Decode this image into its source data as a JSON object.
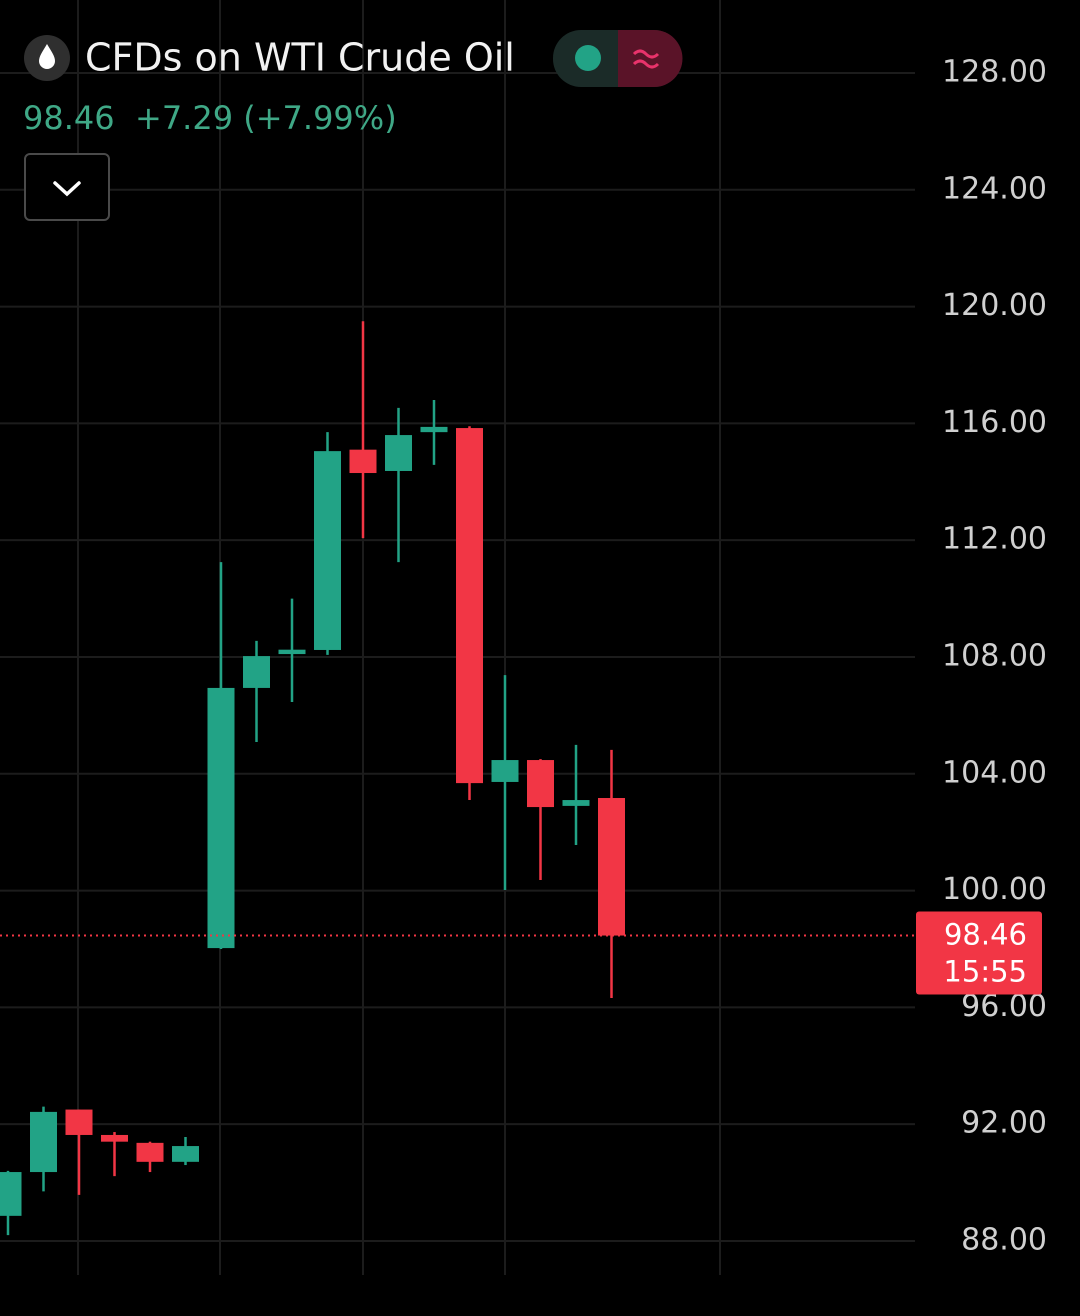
{
  "chart_data": {
    "type": "candlestick",
    "title": "CFDs on WTI Crude Oil",
    "last_price": 98.46,
    "change": "+7.29 (+7.99%)",
    "countdown": "15:55",
    "up_color": "#22a386",
    "down_color": "#f23645",
    "open": [
      88.86,
      90.36,
      92.5,
      91.63,
      91.36,
      90.71,
      98.03,
      106.94,
      108.1,
      108.24,
      115.1,
      114.37,
      115.7,
      115.84,
      103.72,
      104.47,
      102.9,
      103.17
    ],
    "high": [
      90.4,
      92.6,
      92.5,
      91.73,
      91.4,
      91.56,
      111.25,
      108.55,
      110.0,
      115.7,
      119.5,
      116.53,
      116.8,
      115.9,
      107.38,
      104.5,
      104.99,
      104.82
    ],
    "low": [
      88.2,
      89.7,
      89.58,
      90.22,
      90.36,
      90.6,
      98.0,
      105.09,
      106.46,
      108.07,
      112.07,
      111.25,
      114.58,
      103.1,
      100.02,
      100.36,
      101.56,
      96.32
    ],
    "close": [
      90.36,
      92.42,
      91.63,
      91.4,
      90.71,
      91.25,
      106.94,
      108.03,
      108.25,
      115.05,
      114.3,
      115.6,
      115.88,
      103.68,
      104.47,
      102.86,
      103.1,
      98.46
    ],
    "ylim": [
      85.43,
      130.5
    ],
    "yticks": [
      {
        "value": 88,
        "label": "88.00"
      },
      {
        "value": 92,
        "label": "92.00"
      },
      {
        "value": 96,
        "label": "96.00"
      },
      {
        "value": 100,
        "label": "100.00"
      },
      {
        "value": 104,
        "label": "104.00"
      },
      {
        "value": 108,
        "label": "108.00"
      },
      {
        "value": 112,
        "label": "112.00"
      },
      {
        "value": 116,
        "label": "116.00"
      },
      {
        "value": 120,
        "label": "120.00"
      },
      {
        "value": 124,
        "label": "124.00"
      },
      {
        "value": 128,
        "label": "128.00"
      }
    ],
    "grid": true
  }
}
